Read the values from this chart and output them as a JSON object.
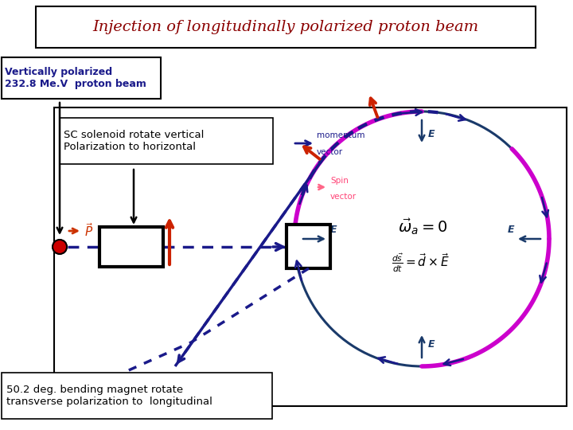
{
  "title": "Injection of longitudinally polarized proton beam",
  "title_color": "#8B0000",
  "label_vert_pol": "Vertically polarized\n232.8 Me.V  proton beam",
  "label_sc": "SC solenoid rotate vertical\nPolarization to horizontal",
  "label_50": "50.2 deg. bending magnet rotate\ntransverse polarization to  longitudinal",
  "label_omega": "$\\vec{\\omega}_a = 0$",
  "label_ds": "$\\frac{d\\vec{s}}{dt} = \\vec{d} \\times \\vec{E}$",
  "label_E": "$\\vec{E}$",
  "label_P": "$\\vec{P}$",
  "label_momentum": "momentum\nvector",
  "label_spin": "Spin\nvector",
  "bg_color": "#ffffff",
  "ring_color": "#1a3a6a",
  "spin_magenta": "#cc00cc",
  "spin_red": "#cc2200",
  "beam_color": "#1a1a8a",
  "E_color": "#1a3a6a",
  "text_blue": "#1a1a8a",
  "text_pink": "#ee4488"
}
